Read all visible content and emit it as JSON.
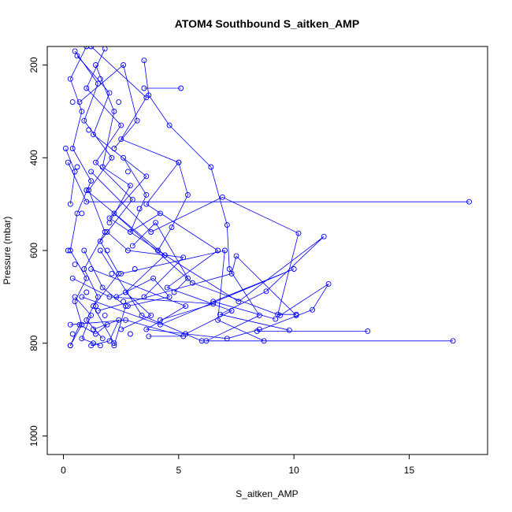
{
  "chart_data": {
    "type": "line",
    "title": "ATOM4 Southbound S_aitken_AMP",
    "xlabel": "S_aitken_AMP",
    "ylabel": "Pressure (mbar)",
    "xlim": [
      -0.7,
      18.4
    ],
    "ylim": [
      1040,
      160
    ],
    "y_reversed": true,
    "x_ticks": [
      0,
      5,
      10,
      15
    ],
    "y_ticks": [
      200,
      400,
      600,
      800,
      1000
    ],
    "grid": false,
    "legend": "none",
    "color": "#0000ff",
    "series": [
      {
        "points": [
          [
            1.0,
            160
          ],
          [
            0.3,
            230
          ],
          [
            0.8,
            300
          ],
          [
            0.4,
            380
          ],
          [
            1.2,
            450
          ],
          [
            0.6,
            520
          ],
          [
            0.3,
            600
          ],
          [
            1.0,
            660
          ],
          [
            0.5,
            710
          ],
          [
            0.8,
            760
          ],
          [
            0.3,
            805
          ]
        ]
      },
      {
        "points": [
          [
            0.5,
            170
          ],
          [
            1.5,
            240
          ],
          [
            0.9,
            320
          ],
          [
            2.1,
            400
          ],
          [
            1.1,
            470
          ],
          [
            1.8,
            560
          ],
          [
            0.9,
            640
          ],
          [
            1.5,
            700
          ],
          [
            1.0,
            750
          ],
          [
            1.7,
            790
          ]
        ]
      },
      {
        "points": [
          [
            1.8,
            165
          ],
          [
            1.0,
            250
          ],
          [
            2.5,
            330
          ],
          [
            1.4,
            410
          ],
          [
            3.0,
            490
          ],
          [
            1.6,
            580
          ],
          [
            2.4,
            650
          ],
          [
            1.3,
            720
          ],
          [
            2.2,
            800
          ]
        ]
      },
      {
        "points": [
          [
            0.6,
            180
          ],
          [
            2.0,
            260
          ],
          [
            1.3,
            350
          ],
          [
            3.6,
            440
          ],
          [
            2.0,
            530
          ],
          [
            4.4,
            610
          ],
          [
            2.7,
            690
          ],
          [
            3.8,
            740
          ],
          [
            2.5,
            770
          ]
        ]
      },
      {
        "points": [
          [
            1.2,
            160
          ],
          [
            3.6,
            270
          ],
          [
            2.5,
            360
          ],
          [
            5.0,
            410
          ],
          [
            3.6,
            500
          ],
          [
            6.7,
            600
          ],
          [
            4.5,
            680
          ],
          [
            7.3,
            730
          ],
          [
            5.3,
            780
          ]
        ]
      },
      {
        "points": [
          [
            3.5,
            190
          ],
          [
            3.7,
            265
          ],
          [
            4.6,
            330
          ],
          [
            6.4,
            420
          ],
          [
            7.1,
            545
          ],
          [
            7.2,
            640
          ],
          [
            8.5,
            740
          ],
          [
            6.2,
            795
          ]
        ]
      },
      {
        "points": [
          [
            5.1,
            250
          ],
          [
            3.5,
            250
          ]
        ]
      },
      {
        "points": [
          [
            0.2,
            410
          ],
          [
            1.0,
            495
          ],
          [
            17.6,
            495
          ]
        ]
      },
      {
        "points": [
          [
            1.2,
            430
          ],
          [
            3.8,
            560
          ],
          [
            6.9,
            485
          ],
          [
            10.2,
            563
          ],
          [
            9.3,
            738
          ],
          [
            10.1,
            738
          ]
        ]
      },
      {
        "points": [
          [
            1.0,
            470
          ],
          [
            4.4,
            610
          ],
          [
            7.6,
            710
          ],
          [
            11.3,
            570
          ],
          [
            8.8,
            688
          ],
          [
            6.8,
            738
          ],
          [
            9.8,
            772
          ]
        ]
      },
      {
        "points": [
          [
            2.2,
            520
          ],
          [
            5.6,
            670
          ],
          [
            9.4,
            740
          ],
          [
            11.5,
            672
          ],
          [
            10.8,
            728
          ],
          [
            8.4,
            774
          ],
          [
            13.2,
            774
          ]
        ]
      },
      {
        "points": [
          [
            1.6,
            600
          ],
          [
            3.4,
            740
          ],
          [
            6.0,
            795
          ],
          [
            16.9,
            795
          ]
        ]
      },
      {
        "points": [
          [
            2.5,
            650
          ],
          [
            7.0,
            600
          ],
          [
            6.7,
            750
          ],
          [
            8.7,
            795
          ]
        ]
      },
      {
        "points": [
          [
            1.2,
            640
          ],
          [
            5.3,
            720
          ],
          [
            3.6,
            770
          ],
          [
            7.1,
            790
          ],
          [
            8.5,
            770
          ]
        ]
      },
      {
        "points": [
          [
            0.8,
            700
          ],
          [
            4.2,
            760
          ],
          [
            10.0,
            640
          ],
          [
            6.5,
            710
          ],
          [
            9.2,
            748
          ]
        ]
      },
      {
        "points": [
          [
            1.5,
            730
          ],
          [
            7.3,
            650
          ],
          [
            7.5,
            612
          ],
          [
            10.1,
            740
          ]
        ]
      },
      {
        "points": [
          [
            0.4,
            660
          ],
          [
            2.0,
            700
          ],
          [
            6.5,
            715
          ],
          [
            4.2,
            750
          ]
        ]
      },
      {
        "points": [
          [
            1.9,
            560
          ],
          [
            2.8,
            600
          ],
          [
            5.2,
            615
          ],
          [
            3.5,
            700
          ]
        ]
      },
      {
        "points": [
          [
            0.3,
            760
          ],
          [
            2.7,
            750
          ],
          [
            5.2,
            785
          ],
          [
            3.7,
            785
          ]
        ]
      },
      {
        "points": [
          [
            0.7,
            280
          ],
          [
            2.6,
            200
          ],
          [
            3.2,
            320
          ],
          [
            2.2,
            380
          ]
        ]
      },
      {
        "points": [
          [
            0.1,
            380
          ],
          [
            0.5,
            430
          ],
          [
            0.3,
            500
          ]
        ]
      },
      {
        "points": [
          [
            1.4,
            200
          ],
          [
            2.2,
            300
          ],
          [
            1.7,
            420
          ],
          [
            2.9,
            460
          ],
          [
            2.0,
            540
          ]
        ]
      },
      {
        "points": [
          [
            0.9,
            600
          ],
          [
            1.7,
            680
          ],
          [
            2.7,
            720
          ],
          [
            2.2,
            805
          ]
        ]
      },
      {
        "points": [
          [
            0.5,
            700
          ],
          [
            1.2,
            740
          ],
          [
            0.8,
            790
          ],
          [
            1.6,
            805
          ]
        ]
      },
      {
        "points": [
          [
            2.3,
            700
          ],
          [
            3.9,
            660
          ],
          [
            4.6,
            700
          ],
          [
            2.8,
            720
          ]
        ]
      },
      {
        "points": [
          [
            1.3,
            770
          ],
          [
            2.4,
            750
          ],
          [
            2.0,
            795
          ],
          [
            1.2,
            805
          ]
        ]
      },
      {
        "points": [
          [
            0.3,
            805
          ],
          [
            0.7,
            760
          ],
          [
            1.4,
            780
          ],
          [
            1.9,
            760
          ]
        ]
      },
      {
        "points": [
          [
            3.0,
            590
          ],
          [
            4.0,
            540
          ],
          [
            5.4,
            660
          ],
          [
            4.8,
            690
          ]
        ]
      },
      {
        "points": [
          [
            2.6,
            400
          ],
          [
            3.6,
            480
          ],
          [
            2.9,
            560
          ],
          [
            4.2,
            520
          ]
        ]
      },
      {
        "points": [
          [
            5.0,
            410
          ],
          [
            5.4,
            480
          ],
          [
            4.7,
            550
          ],
          [
            4.1,
            600
          ]
        ]
      }
    ],
    "extra_points": [
      [
        1.6,
        230
      ],
      [
        0.4,
        280
      ],
      [
        2.4,
        280
      ],
      [
        1.1,
        340
      ],
      [
        0.6,
        420
      ],
      [
        2.8,
        430
      ],
      [
        0.8,
        520
      ],
      [
        1.9,
        600
      ],
      [
        0.5,
        630
      ],
      [
        3.1,
        640
      ],
      [
        1.0,
        690
      ],
      [
        2.6,
        710
      ],
      [
        1.8,
        740
      ],
      [
        0.4,
        780
      ],
      [
        2.9,
        780
      ],
      [
        1.3,
        800
      ],
      [
        3.3,
        510
      ],
      [
        0.2,
        600
      ],
      [
        2.1,
        650
      ],
      [
        1.4,
        720
      ]
    ]
  }
}
